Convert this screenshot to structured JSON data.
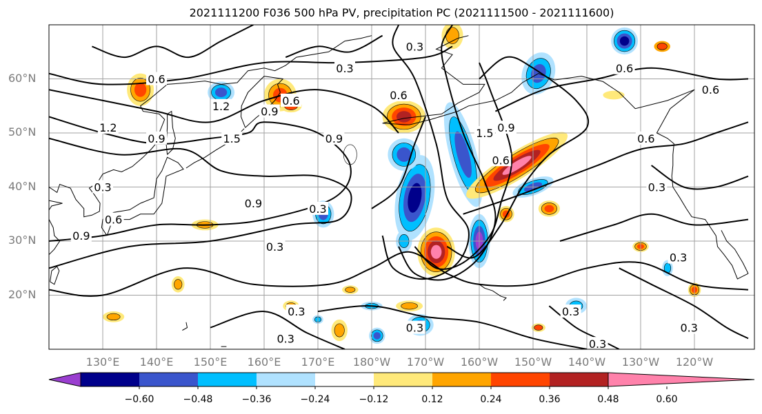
{
  "title": "2021111200 F036 500 hPa PV, precipitation PC (2021111500 - 2021111600)",
  "lat_labels": [
    "60°N",
    "50°N",
    "40°N",
    "30°N",
    "20°N"
  ],
  "lon_labels": [
    "130°E",
    "140°E",
    "150°E",
    "160°E",
    "170°E",
    "180°W",
    "170°W",
    "160°W",
    "150°W",
    "140°W",
    "130°W",
    "120°W"
  ],
  "colorbar": {
    "ticks": [
      "−0.60",
      "−0.48",
      "−0.36",
      "−0.24",
      "−0.12",
      "0.12",
      "0.24",
      "0.36",
      "0.48",
      "0.60"
    ],
    "colors": [
      "#9a3ed0",
      "#00008b",
      "#3a55cc",
      "#00bfff",
      "#b0e2ff",
      "#ffffff",
      "#ffe97a",
      "#ffa500",
      "#ff4500",
      "#b22222",
      "#ff82ab"
    ]
  },
  "contour_labels": [
    {
      "text": "0.3",
      "lon": 175,
      "lat": 62
    },
    {
      "text": "0.6",
      "lon": 140,
      "lat": 60
    },
    {
      "text": "0.6",
      "lon": 165,
      "lat": 56
    },
    {
      "text": "1.2",
      "lon": 152,
      "lat": 55
    },
    {
      "text": "1.2",
      "lon": 131,
      "lat": 51
    },
    {
      "text": "1.5",
      "lon": 154,
      "lat": 49
    },
    {
      "text": "0.9",
      "lon": 140,
      "lat": 49
    },
    {
      "text": "0.9",
      "lon": 173,
      "lat": 49
    },
    {
      "text": "0.9",
      "lon": 161,
      "lat": 54
    },
    {
      "text": "0.3",
      "lon": 170,
      "lat": 36
    },
    {
      "text": "0.9",
      "lon": 158,
      "lat": 37
    },
    {
      "text": "0.9",
      "lon": 126,
      "lat": 31
    },
    {
      "text": "0.6",
      "lon": 132,
      "lat": 34
    },
    {
      "text": "0.3",
      "lon": 130,
      "lat": 40
    },
    {
      "text": "0.3",
      "lon": 162,
      "lat": 29
    },
    {
      "text": "0.3",
      "lon": 166,
      "lat": 17
    },
    {
      "text": "0.3",
      "lon": 164,
      "lat": 12
    },
    {
      "text": "0.3",
      "lon": 188,
      "lat": 14
    },
    {
      "text": "0.6",
      "lon": 185,
      "lat": 57
    },
    {
      "text": "0.6",
      "lon": 204,
      "lat": 45
    },
    {
      "text": "0.9",
      "lon": 205,
      "lat": 51
    },
    {
      "text": "1.5",
      "lon": 201,
      "lat": 50
    },
    {
      "text": "0.3",
      "lon": 188,
      "lat": 66
    },
    {
      "text": "0.3",
      "lon": 217,
      "lat": 17
    },
    {
      "text": "0.3",
      "lon": 237,
      "lat": 27
    },
    {
      "text": "0.3",
      "lon": 239,
      "lat": 14
    },
    {
      "text": "0.3",
      "lon": 222,
      "lat": 11
    },
    {
      "text": "0.6",
      "lon": 227,
      "lat": 62
    },
    {
      "text": "0.6",
      "lon": 243,
      "lat": 58
    },
    {
      "text": "0.6",
      "lon": 231,
      "lat": 49
    },
    {
      "text": "0.3",
      "lon": 233,
      "lat": 40
    }
  ]
}
